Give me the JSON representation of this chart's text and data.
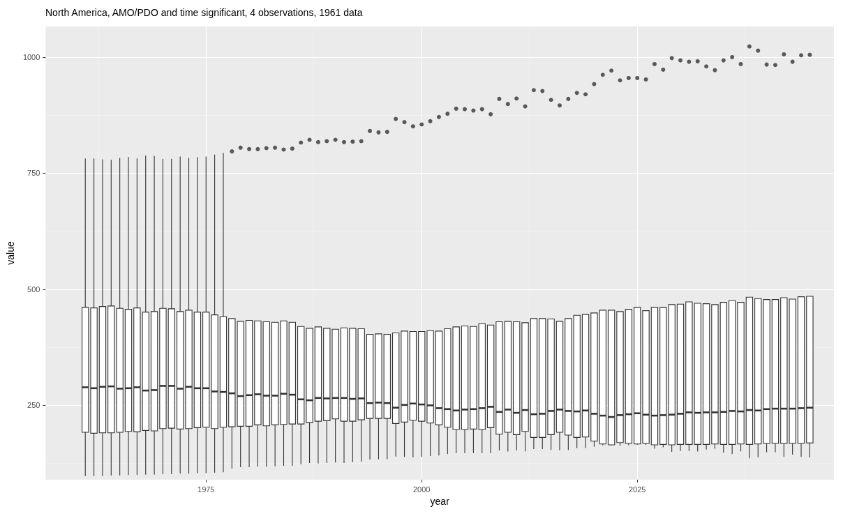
{
  "chart_data": {
    "type": "box",
    "title": "North America, AMO/PDO and time significant, 4 observations, 1961 data",
    "xlabel": "year",
    "ylabel": "value",
    "xlim": [
      1956.4,
      2047.8
    ],
    "xticks": [
      1975,
      2000,
      2025
    ],
    "ylim": [
      90,
      1066
    ],
    "yticks": [
      250,
      500,
      750,
      1000
    ],
    "grid": true,
    "series": [
      {
        "color": "#333333",
        "x": [
          1961,
          1962,
          1963,
          1964,
          1965,
          1966,
          1967,
          1968,
          1969,
          1970,
          1971,
          1972,
          1973,
          1974,
          1975,
          1976,
          1977,
          1978,
          1979,
          1980,
          1981,
          1982,
          1983,
          1984,
          1985,
          1986,
          1987,
          1988,
          1989,
          1990,
          1991,
          1992,
          1993,
          1994,
          1995,
          1996,
          1997,
          1998,
          1999,
          2000,
          2001,
          2002,
          2003,
          2004,
          2005,
          2006,
          2007,
          2008,
          2009,
          2010,
          2011,
          2012,
          2013,
          2014,
          2015,
          2016,
          2017,
          2018,
          2019,
          2020,
          2021,
          2022,
          2023,
          2024,
          2025,
          2026,
          2027,
          2028,
          2029,
          2030,
          2031,
          2032,
          2033,
          2034,
          2035,
          2036,
          2037,
          2038,
          2039,
          2040,
          2041,
          2042,
          2043,
          2044,
          2045
        ],
        "boxes": [
          {
            "low": 98,
            "q1": 192,
            "median": 289,
            "q3": 461,
            "high": 782
          },
          {
            "low": 98,
            "q1": 190,
            "median": 287,
            "q3": 460,
            "high": 782
          },
          {
            "low": 98,
            "q1": 191,
            "median": 290,
            "q3": 463,
            "high": 780
          },
          {
            "low": 99,
            "q1": 191,
            "median": 291,
            "q3": 464,
            "high": 779
          },
          {
            "low": 99,
            "q1": 192,
            "median": 286,
            "q3": 459,
            "high": 783
          },
          {
            "low": 100,
            "q1": 194,
            "median": 287,
            "q3": 457,
            "high": 785
          },
          {
            "low": 100,
            "q1": 193,
            "median": 289,
            "q3": 460,
            "high": 782
          },
          {
            "low": 101,
            "q1": 196,
            "median": 282,
            "q3": 451,
            "high": 788
          },
          {
            "low": 101,
            "q1": 195,
            "median": 283,
            "q3": 452,
            "high": 787
          },
          {
            "low": 102,
            "q1": 200,
            "median": 292,
            "q3": 459,
            "high": 781
          },
          {
            "low": 102,
            "q1": 201,
            "median": 292,
            "q3": 458,
            "high": 781
          },
          {
            "low": 103,
            "q1": 199,
            "median": 286,
            "q3": 452,
            "high": 786
          },
          {
            "low": 103,
            "q1": 200,
            "median": 290,
            "q3": 455,
            "high": 783
          },
          {
            "low": 104,
            "q1": 202,
            "median": 287,
            "q3": 451,
            "high": 785
          },
          {
            "low": 104,
            "q1": 203,
            "median": 287,
            "q3": 451,
            "high": 786
          },
          {
            "low": 105,
            "q1": 200,
            "median": 280,
            "q3": 445,
            "high": 790
          },
          {
            "low": 106,
            "q1": 203,
            "median": 279,
            "q3": 441,
            "high": 794
          },
          {
            "low": 114,
            "q1": 204,
            "median": 276,
            "q3": 437,
            "high": 437,
            "outliers": [
              797
            ]
          },
          {
            "low": 117,
            "q1": 205,
            "median": 270,
            "q3": 431,
            "high": 431,
            "outliers": [
              805
            ]
          },
          {
            "low": 117,
            "q1": 205,
            "median": 272,
            "q3": 433,
            "high": 433,
            "outliers": [
              802
            ]
          },
          {
            "low": 118,
            "q1": 208,
            "median": 274,
            "q3": 432,
            "high": 432,
            "outliers": [
              802
            ]
          },
          {
            "low": 118,
            "q1": 206,
            "median": 271,
            "q3": 430,
            "high": 430,
            "outliers": [
              804
            ]
          },
          {
            "low": 119,
            "q1": 208,
            "median": 271,
            "q3": 429,
            "high": 429,
            "outliers": [
              805
            ]
          },
          {
            "low": 120,
            "q1": 209,
            "median": 275,
            "q3": 432,
            "high": 432,
            "outliers": [
              801
            ]
          },
          {
            "low": 120,
            "q1": 210,
            "median": 273,
            "q3": 429,
            "high": 429,
            "outliers": [
              803
            ]
          },
          {
            "low": 123,
            "q1": 210,
            "median": 263,
            "q3": 420,
            "high": 420,
            "outliers": [
              816
            ]
          },
          {
            "low": 126,
            "q1": 213,
            "median": 261,
            "q3": 416,
            "high": 416,
            "outliers": [
              822
            ]
          },
          {
            "low": 125,
            "q1": 216,
            "median": 266,
            "q3": 419,
            "high": 419,
            "outliers": [
              817
            ]
          },
          {
            "low": 126,
            "q1": 217,
            "median": 265,
            "q3": 416,
            "high": 416,
            "outliers": [
              819
            ]
          },
          {
            "low": 127,
            "q1": 221,
            "median": 266,
            "q3": 414,
            "high": 414,
            "outliers": [
              822
            ]
          },
          {
            "low": 126,
            "q1": 216,
            "median": 266,
            "q3": 417,
            "high": 417,
            "outliers": [
              817
            ]
          },
          {
            "low": 128,
            "q1": 216,
            "median": 264,
            "q3": 416,
            "high": 416,
            "outliers": [
              818
            ]
          },
          {
            "low": 129,
            "q1": 219,
            "median": 265,
            "q3": 415,
            "high": 415,
            "outliers": [
              819
            ]
          },
          {
            "low": 133,
            "q1": 222,
            "median": 255,
            "q3": 403,
            "high": 403,
            "outliers": [
              841
            ]
          },
          {
            "low": 134,
            "q1": 222,
            "median": 256,
            "q3": 404,
            "high": 404,
            "outliers": [
              838
            ]
          },
          {
            "low": 134,
            "q1": 222,
            "median": 255,
            "q3": 403,
            "high": 403,
            "outliers": [
              839
            ]
          },
          {
            "low": 140,
            "q1": 211,
            "median": 245,
            "q3": 406,
            "high": 406,
            "outliers": [
              867
            ]
          },
          {
            "low": 139,
            "q1": 214,
            "median": 251,
            "q3": 410,
            "high": 410,
            "outliers": [
              860
            ]
          },
          {
            "low": 138,
            "q1": 218,
            "median": 254,
            "q3": 409,
            "high": 409,
            "outliers": [
              851
            ]
          },
          {
            "low": 139,
            "q1": 216,
            "median": 252,
            "q3": 409,
            "high": 409,
            "outliers": [
              855
            ]
          },
          {
            "low": 141,
            "q1": 212,
            "median": 250,
            "q3": 411,
            "high": 411,
            "outliers": [
              862
            ]
          },
          {
            "low": 142,
            "q1": 208,
            "median": 244,
            "q3": 410,
            "high": 410,
            "outliers": [
              871
            ]
          },
          {
            "low": 145,
            "q1": 203,
            "median": 242,
            "q3": 415,
            "high": 415,
            "outliers": [
              878
            ]
          },
          {
            "low": 147,
            "q1": 198,
            "median": 239,
            "q3": 419,
            "high": 419,
            "outliers": [
              889
            ]
          },
          {
            "low": 147,
            "q1": 198,
            "median": 241,
            "q3": 421,
            "high": 421,
            "outliers": [
              888
            ]
          },
          {
            "low": 147,
            "q1": 199,
            "median": 242,
            "q3": 420,
            "high": 420,
            "outliers": [
              885
            ]
          },
          {
            "low": 147,
            "q1": 198,
            "median": 244,
            "q3": 426,
            "high": 426,
            "outliers": [
              888
            ]
          },
          {
            "low": 147,
            "q1": 202,
            "median": 247,
            "q3": 423,
            "high": 423,
            "outliers": [
              877
            ]
          },
          {
            "low": 153,
            "q1": 188,
            "median": 236,
            "q3": 430,
            "high": 430,
            "outliers": [
              910
            ]
          },
          {
            "low": 151,
            "q1": 192,
            "median": 241,
            "q3": 431,
            "high": 431,
            "outliers": [
              899
            ]
          },
          {
            "low": 153,
            "q1": 187,
            "median": 234,
            "q3": 430,
            "high": 430,
            "outliers": [
              911
            ]
          },
          {
            "low": 151,
            "q1": 194,
            "median": 240,
            "q3": 428,
            "high": 428,
            "outliers": [
              894
            ]
          },
          {
            "low": 156,
            "q1": 181,
            "median": 231,
            "q3": 437,
            "high": 437,
            "outliers": [
              929
            ]
          },
          {
            "low": 156,
            "q1": 181,
            "median": 232,
            "q3": 437,
            "high": 437,
            "outliers": [
              927
            ]
          },
          {
            "low": 154,
            "q1": 187,
            "median": 238,
            "q3": 436,
            "high": 436,
            "outliers": [
              908
            ]
          },
          {
            "low": 153,
            "q1": 192,
            "median": 241,
            "q3": 431,
            "high": 431,
            "outliers": [
              896
            ]
          },
          {
            "low": 154,
            "q1": 186,
            "median": 238,
            "q3": 437,
            "high": 437,
            "outliers": [
              910
            ]
          },
          {
            "low": 158,
            "q1": 181,
            "median": 237,
            "q3": 444,
            "high": 444,
            "outliers": [
              923
            ]
          },
          {
            "low": 158,
            "q1": 182,
            "median": 239,
            "q3": 446,
            "high": 446,
            "outliers": [
              920
            ]
          },
          {
            "low": 161,
            "q1": 173,
            "median": 232,
            "q3": 449,
            "high": 449,
            "outliers": [
              942
            ]
          },
          {
            "low": 164,
            "q1": 167,
            "median": 228,
            "q3": 455,
            "high": 455,
            "outliers": [
              962
            ]
          },
          {
            "low": 164,
            "q1": 165,
            "median": 225,
            "q3": 455,
            "high": 455,
            "outliers": [
              971
            ]
          },
          {
            "low": 163,
            "q1": 170,
            "median": 229,
            "q3": 452,
            "high": 452,
            "outliers": [
              950
            ]
          },
          {
            "low": 164,
            "q1": 168,
            "median": 231,
            "q3": 457,
            "high": 457,
            "outliers": [
              955
            ]
          },
          {
            "low": 165,
            "q1": 167,
            "median": 233,
            "q3": 461,
            "high": 461,
            "outliers": [
              955
            ]
          },
          {
            "low": 165,
            "q1": 168,
            "median": 230,
            "q3": 454,
            "high": 454,
            "outliers": [
              952
            ]
          },
          {
            "low": 157,
            "q1": 165,
            "median": 228,
            "q3": 461,
            "high": 461,
            "outliers": [
              985
            ]
          },
          {
            "low": 160,
            "q1": 166,
            "median": 229,
            "q3": 461,
            "high": 461,
            "outliers": [
              973
            ]
          },
          {
            "low": 150,
            "q1": 165,
            "median": 230,
            "q3": 467,
            "high": 467,
            "outliers": [
              998
            ]
          },
          {
            "low": 152,
            "q1": 166,
            "median": 232,
            "q3": 468,
            "high": 468,
            "outliers": [
              993
            ]
          },
          {
            "low": 152,
            "q1": 166,
            "median": 235,
            "q3": 473,
            "high": 473,
            "outliers": [
              990
            ]
          },
          {
            "low": 151,
            "q1": 166,
            "median": 234,
            "q3": 470,
            "high": 470,
            "outliers": [
              991
            ]
          },
          {
            "low": 155,
            "q1": 166,
            "median": 235,
            "q3": 469,
            "high": 469,
            "outliers": [
              980
            ]
          },
          {
            "low": 157,
            "q1": 167,
            "median": 235,
            "q3": 467,
            "high": 467,
            "outliers": [
              972
            ]
          },
          {
            "low": 148,
            "q1": 166,
            "median": 236,
            "q3": 472,
            "high": 472,
            "outliers": [
              993
            ]
          },
          {
            "low": 145,
            "q1": 166,
            "median": 238,
            "q3": 476,
            "high": 476,
            "outliers": [
              1000
            ]
          },
          {
            "low": 151,
            "q1": 167,
            "median": 237,
            "q3": 472,
            "high": 472,
            "outliers": [
              985
            ]
          },
          {
            "low": 136,
            "q1": 166,
            "median": 240,
            "q3": 483,
            "high": 483,
            "outliers": [
              1023
            ]
          },
          {
            "low": 138,
            "q1": 167,
            "median": 239,
            "q3": 480,
            "high": 480,
            "outliers": [
              1014
            ]
          },
          {
            "low": 149,
            "q1": 168,
            "median": 242,
            "q3": 478,
            "high": 478,
            "outliers": [
              984
            ]
          },
          {
            "low": 149,
            "q1": 168,
            "median": 243,
            "q3": 478,
            "high": 478,
            "outliers": [
              983
            ]
          },
          {
            "low": 139,
            "q1": 168,
            "median": 243,
            "q3": 482,
            "high": 482,
            "outliers": [
              1006
            ]
          },
          {
            "low": 144,
            "q1": 168,
            "median": 243,
            "q3": 479,
            "high": 479,
            "outliers": [
              990
            ]
          },
          {
            "low": 139,
            "q1": 168,
            "median": 244,
            "q3": 484,
            "high": 484,
            "outliers": [
              1004
            ]
          },
          {
            "low": 138,
            "q1": 169,
            "median": 245,
            "q3": 485,
            "high": 485,
            "outliers": [
              1005
            ]
          }
        ]
      }
    ]
  }
}
